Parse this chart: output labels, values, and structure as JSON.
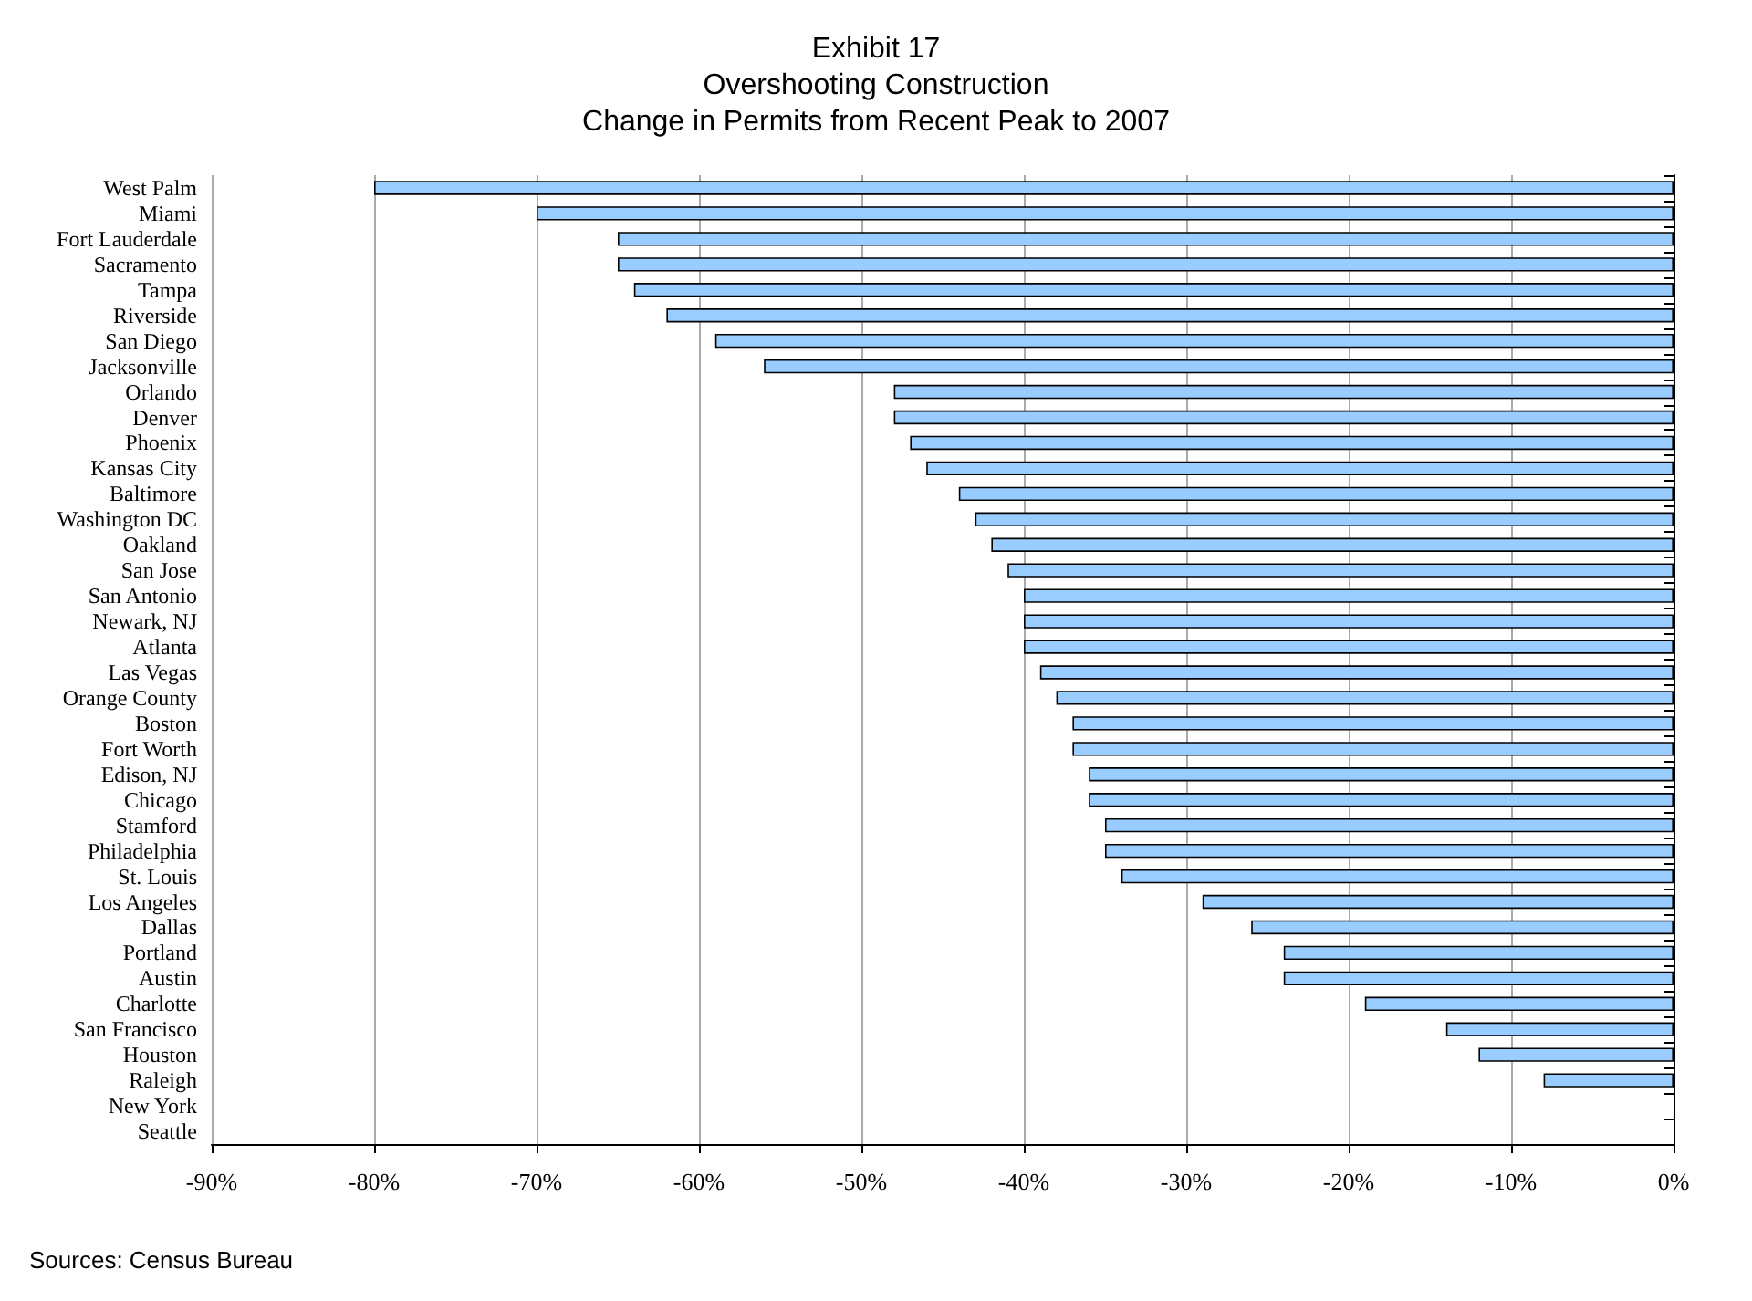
{
  "chart_data": {
    "type": "bar",
    "orientation": "horizontal",
    "title": "Exhibit 17\nOvershooting Construction\nChange in Permits from Recent Peak to 2007",
    "categories": [
      "West Palm",
      "Miami",
      "Fort Lauderdale",
      "Sacramento",
      "Tampa",
      "Riverside",
      "San Diego",
      "Jacksonville",
      "Orlando",
      "Denver",
      "Phoenix",
      "Kansas City",
      "Baltimore",
      "Washington DC",
      "Oakland",
      "San Jose",
      "San Antonio",
      "Newark, NJ",
      "Atlanta",
      "Las Vegas",
      "Orange County",
      "Boston",
      "Fort Worth",
      "Edison, NJ",
      "Chicago",
      "Stamford",
      "Philadelphia",
      "St. Louis",
      "Los Angeles",
      "Dallas",
      "Portland",
      "Austin",
      "Charlotte",
      "San Francisco",
      "Houston",
      "Raleigh",
      "New York",
      "Seattle"
    ],
    "values": [
      -80,
      -70,
      -65,
      -65,
      -64,
      -62,
      -59,
      -56,
      -48,
      -48,
      -47,
      -46,
      -44,
      -43,
      -42,
      -41,
      -40,
      -40,
      -40,
      -39,
      -38,
      -37,
      -37,
      -36,
      -36,
      -35,
      -35,
      -34,
      -29,
      -26,
      -24,
      -24,
      -19,
      -14,
      -12,
      -8,
      0,
      0
    ],
    "color": "#99ccff",
    "xlim": [
      -90,
      0
    ],
    "xticks": [
      {
        "value": -90,
        "label": "-90%"
      },
      {
        "value": -80,
        "label": "-80%"
      },
      {
        "value": -70,
        "label": "-70%"
      },
      {
        "value": -60,
        "label": "-60%"
      },
      {
        "value": -50,
        "label": "-50%"
      },
      {
        "value": -40,
        "label": "-40%"
      },
      {
        "value": -30,
        "label": "-30%"
      },
      {
        "value": -20,
        "label": "-20%"
      },
      {
        "value": -10,
        "label": "-10%"
      },
      {
        "value": 0,
        "label": "0%"
      }
    ],
    "grid": "x",
    "annotations": [
      "Sources: Census Bureau"
    ]
  }
}
